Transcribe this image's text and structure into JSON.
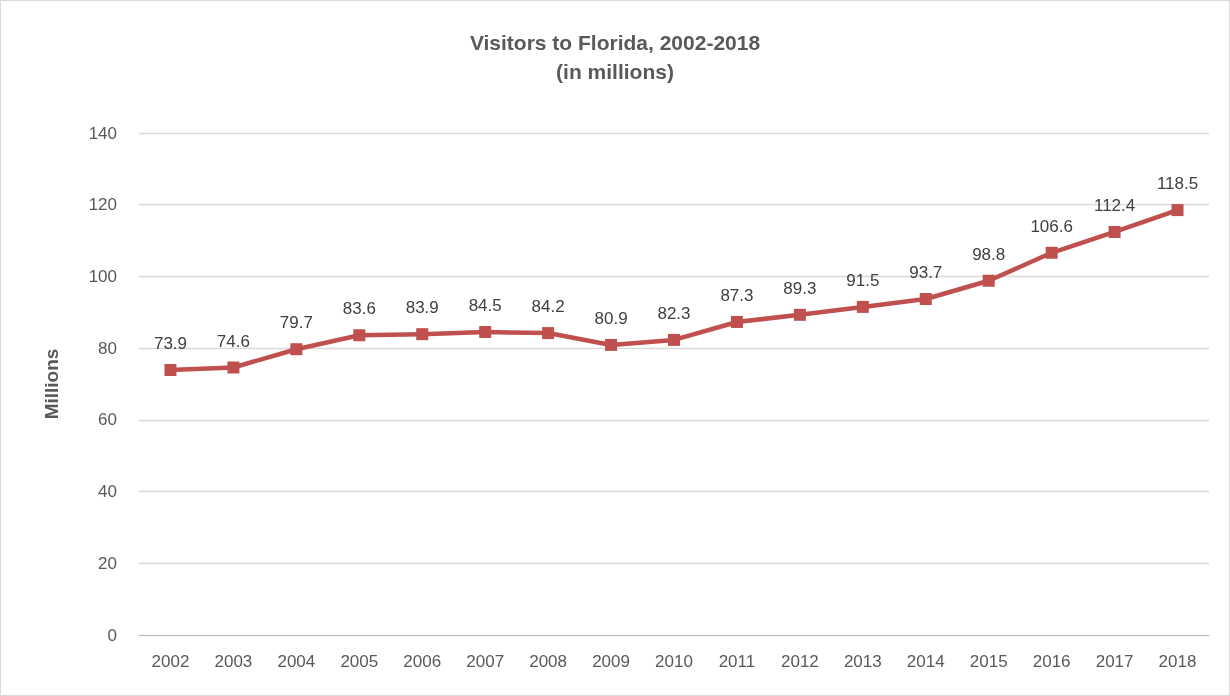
{
  "chart_data": {
    "type": "line",
    "title": "Visitors to Florida, 2002-2018",
    "subtitle": "(in millions)",
    "ylabel": "Millions",
    "categories": [
      "2002",
      "2003",
      "2004",
      "2005",
      "2006",
      "2007",
      "2008",
      "2009",
      "2010",
      "2011",
      "2012",
      "2013",
      "2014",
      "2015",
      "2016",
      "2017",
      "2018"
    ],
    "series": [
      {
        "color": "#c0504d",
        "values": [
          73.9,
          74.6,
          79.7,
          83.6,
          83.9,
          84.5,
          84.2,
          80.9,
          82.3,
          87.3,
          89.3,
          91.5,
          93.7,
          98.8,
          106.6,
          112.4,
          118.5
        ]
      }
    ],
    "ylim": [
      0,
      140
    ],
    "yticks": [
      0,
      20,
      40,
      60,
      80,
      100,
      120,
      140
    ],
    "grid": "y",
    "data_labels": true,
    "marker": "square",
    "line_style": "solid"
  }
}
